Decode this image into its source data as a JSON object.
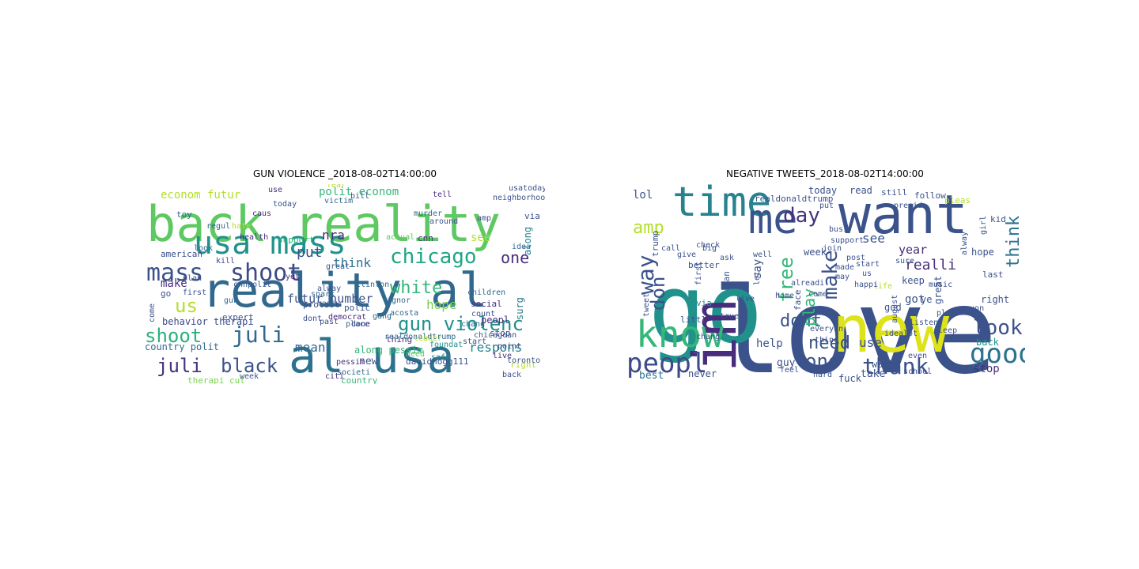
{
  "figure": {
    "panels": [
      {
        "title": "GUN VIOLENCE _2018-08-02T14:00:00",
        "words": [
          {
            "text": "back reality",
            "color": "#5ec962"
          },
          {
            "text": "reality al",
            "color": "#31688e"
          },
          {
            "text": "al usa",
            "color": "#2c728e"
          },
          {
            "text": "usa mass",
            "color": "#21918c"
          },
          {
            "text": "mass",
            "color": "#3b528b"
          },
          {
            "text": "shoot",
            "color": "#3e4a89"
          },
          {
            "text": "chicago",
            "color": "#21a685"
          },
          {
            "text": "juli",
            "color": "#31688e"
          },
          {
            "text": "shoot",
            "color": "#2ab07f"
          },
          {
            "text": "juli",
            "color": "#46327e"
          },
          {
            "text": "black",
            "color": "#3b528b"
          },
          {
            "text": "gun violenc",
            "color": "#21918c"
          },
          {
            "text": "us",
            "color": "#b5de2b"
          },
          {
            "text": "white",
            "color": "#35b779"
          },
          {
            "text": "one",
            "color": "#472d7b"
          },
          {
            "text": "put",
            "color": "#3b528b"
          },
          {
            "text": "nra",
            "color": "#482878"
          },
          {
            "text": "think",
            "color": "#2c728e"
          },
          {
            "text": "mean",
            "color": "#31688e"
          },
          {
            "text": "hope",
            "color": "#7ad151"
          },
          {
            "text": "respons",
            "color": "#26828e"
          },
          {
            "text": "futur number",
            "color": "#3b528b"
          },
          {
            "text": "econom futur",
            "color": "#b5de2b"
          },
          {
            "text": "polit econom",
            "color": "#35b779"
          },
          {
            "text": "make",
            "color": "#472d7b"
          },
          {
            "text": "see",
            "color": "#b5de2b"
          },
          {
            "text": "along",
            "color": "#26828e"
          },
          {
            "text": "surg",
            "color": "#2a788e"
          },
          {
            "text": "new",
            "color": "#3b528b"
          },
          {
            "text": "along pessim",
            "color": "#35b779"
          },
          {
            "text": "country polit",
            "color": "#31688e"
          },
          {
            "text": "behavior therapi",
            "color": "#3e4a89"
          },
          {
            "text": "american",
            "color": "#3b528b"
          },
          {
            "text": "support",
            "color": "#2ab07f"
          },
          {
            "text": "cnn",
            "color": "#472d7b"
          },
          {
            "text": "actual",
            "color": "#5ec962"
          },
          {
            "text": "protest",
            "color": "#3e4a89"
          },
          {
            "text": "go",
            "color": "#3b528b"
          },
          {
            "text": "toy",
            "color": "#31688e"
          },
          {
            "text": "great",
            "color": "#3b528b"
          },
          {
            "text": "thing",
            "color": "#472d7b"
          },
          {
            "text": "realdonaldtrump",
            "color": "#31688e"
          },
          {
            "text": "davidhogg111",
            "color": "#3b528b"
          },
          {
            "text": "pessim",
            "color": "#472d7b"
          },
          {
            "text": "societi",
            "color": "#31688e"
          },
          {
            "text": "country",
            "color": "#35b779"
          },
          {
            "text": "therapi cut",
            "color": "#7ad151"
          },
          {
            "text": "week",
            "color": "#3b528b"
          },
          {
            "text": "peopl",
            "color": "#472d7b"
          },
          {
            "text": "right",
            "color": "#b5de2b"
          },
          {
            "text": "via",
            "color": "#3b528b"
          },
          {
            "text": "children",
            "color": "#31688e"
          },
          {
            "text": "stop",
            "color": "#3e4a89"
          },
          {
            "text": "caus",
            "color": "#472d7b"
          },
          {
            "text": "expert",
            "color": "#3b528b"
          },
          {
            "text": "look",
            "color": "#31688e"
          },
          {
            "text": "social",
            "color": "#472d7b"
          },
          {
            "text": "murder",
            "color": "#31688e"
          },
          {
            "text": "around",
            "color": "#3b528b"
          },
          {
            "text": "democrat",
            "color": "#482878"
          },
          {
            "text": "need",
            "color": "#5ec962"
          },
          {
            "text": "kill",
            "color": "#3e4a89"
          },
          {
            "text": "done",
            "color": "#472d7b"
          },
          {
            "text": "safe",
            "color": "#26828e"
          },
          {
            "text": "count",
            "color": "#3b528b"
          },
          {
            "text": "clinton",
            "color": "#31688e"
          },
          {
            "text": "foundat",
            "color": "#21918c"
          },
          {
            "text": "use",
            "color": "#472d7b"
          },
          {
            "text": "today",
            "color": "#3b528b"
          },
          {
            "text": "acosta",
            "color": "#31688e"
          },
          {
            "text": "chicagoan",
            "color": "#3b528b"
          },
          {
            "text": "victim",
            "color": "#31688e"
          },
          {
            "text": "neighborhood",
            "color": "#3b528b"
          },
          {
            "text": "leader",
            "color": "#b5de2b"
          },
          {
            "text": "tell",
            "color": "#472d7b"
          },
          {
            "text": "usatoday",
            "color": "#3b528b"
          },
          {
            "text": "spark",
            "color": "#31688e"
          },
          {
            "text": "past",
            "color": "#3e4a89"
          },
          {
            "text": "polic",
            "color": "#3b528b"
          },
          {
            "text": "ignor",
            "color": "#31688e"
          },
          {
            "text": "chang",
            "color": "#2c728e"
          },
          {
            "text": "come",
            "color": "#3b528b"
          },
          {
            "text": "fear",
            "color": "#b5de2b"
          },
          {
            "text": "amp",
            "color": "#3b528b"
          },
          {
            "text": "live",
            "color": "#472d7b"
          },
          {
            "text": "back",
            "color": "#3b528b"
          },
          {
            "text": "gun",
            "color": "#31688e"
          },
          {
            "text": "point",
            "color": "#3b528b"
          },
          {
            "text": "citi",
            "color": "#472d7b"
          },
          {
            "text": "gang",
            "color": "#31688e"
          },
          {
            "text": "bill",
            "color": "#3b528b"
          },
          {
            "text": "start",
            "color": "#3b528b"
          },
          {
            "text": "hate",
            "color": "#b5de2b"
          },
          {
            "text": "plan",
            "color": "#3b528b"
          },
          {
            "text": "mani",
            "color": "#31688e"
          },
          {
            "text": "health",
            "color": "#472d7b"
          },
          {
            "text": "toronto",
            "color": "#3b528b"
          },
          {
            "text": "idea",
            "color": "#31688e"
          },
          {
            "text": "first",
            "color": "#3b528b"
          },
          {
            "text": "alway",
            "color": "#3b528b"
          },
          {
            "text": "regul",
            "color": "#31688e"
          },
          {
            "text": "yet",
            "color": "#472d7b"
          },
          {
            "text": "dont",
            "color": "#3b528b"
          },
          {
            "text": "place",
            "color": "#31688e"
          },
          {
            "text": "cnnpolit",
            "color": "#3b528b"
          }
        ]
      },
      {
        "title": "NEGATIVE TWEETS_2018-08-02T14:00:00",
        "words": [
          {
            "text": "love",
            "color": "#3b528b"
          },
          {
            "text": "go",
            "color": "#21918c"
          },
          {
            "text": "want",
            "color": "#3b528b"
          },
          {
            "text": "new",
            "color": "#dde318"
          },
          {
            "text": "im",
            "color": "#472d7b"
          },
          {
            "text": "time",
            "color": "#26828e"
          },
          {
            "text": "me",
            "color": "#3b528b"
          },
          {
            "text": "know",
            "color": "#35b779"
          },
          {
            "text": "good",
            "color": "#2c728e"
          },
          {
            "text": "peopl",
            "color": "#3e4a89"
          },
          {
            "text": "day",
            "color": "#46327e"
          },
          {
            "text": "way",
            "color": "#3b528b"
          },
          {
            "text": "don",
            "color": "#3b528b"
          },
          {
            "text": "thank",
            "color": "#3b528b"
          },
          {
            "text": "think",
            "color": "#2c728e"
          },
          {
            "text": "look",
            "color": "#3b528b"
          },
          {
            "text": "dont",
            "color": "#3b528b"
          },
          {
            "text": "need",
            "color": "#3b528b"
          },
          {
            "text": "one",
            "color": "#3b528b"
          },
          {
            "text": "make",
            "color": "#3b528b"
          },
          {
            "text": "free",
            "color": "#35b779"
          },
          {
            "text": "amp",
            "color": "#b5de2b"
          },
          {
            "text": "lol",
            "color": "#3b528b"
          },
          {
            "text": "see",
            "color": "#3b528b"
          },
          {
            "text": "realli",
            "color": "#472d7b"
          },
          {
            "text": "year",
            "color": "#472d7b"
          },
          {
            "text": "use",
            "color": "#3b528b"
          },
          {
            "text": "help",
            "color": "#3b528b"
          },
          {
            "text": "stop",
            "color": "#472d7b"
          },
          {
            "text": "play",
            "color": "#35b779"
          },
          {
            "text": "got",
            "color": "#3b528b"
          },
          {
            "text": "god",
            "color": "#3b528b"
          },
          {
            "text": "best",
            "color": "#2c728e"
          },
          {
            "text": "take",
            "color": "#3b528b"
          },
          {
            "text": "say",
            "color": "#3b528b"
          },
          {
            "text": "keep",
            "color": "#3b528b"
          },
          {
            "text": "back",
            "color": "#21918c"
          },
          {
            "text": "hope",
            "color": "#3b528b"
          },
          {
            "text": "right",
            "color": "#3b528b"
          },
          {
            "text": "guy",
            "color": "#3b528b"
          },
          {
            "text": "never",
            "color": "#3b528b"
          },
          {
            "text": "work",
            "color": "#3b528b"
          },
          {
            "text": "fuck",
            "color": "#3b528b"
          },
          {
            "text": "week",
            "color": "#3b528b"
          },
          {
            "text": "today",
            "color": "#3b528b"
          },
          {
            "text": "read",
            "color": "#3b528b"
          },
          {
            "text": "still",
            "color": "#3b528b"
          },
          {
            "text": "pleas",
            "color": "#b5de2b"
          },
          {
            "text": "follow",
            "color": "#3b528b"
          },
          {
            "text": "kid",
            "color": "#3b528b"
          },
          {
            "text": "realdonaldtrump",
            "color": "#3b528b"
          },
          {
            "text": "trump",
            "color": "#3b528b"
          },
          {
            "text": "better",
            "color": "#3b528b"
          },
          {
            "text": "ask",
            "color": "#3b528b"
          },
          {
            "text": "check",
            "color": "#3b528b"
          },
          {
            "text": "fan",
            "color": "#3b528b"
          },
          {
            "text": "via",
            "color": "#21918c"
          },
          {
            "text": "face",
            "color": "#3b528b"
          },
          {
            "text": "littl",
            "color": "#3b528b"
          },
          {
            "text": "tweet",
            "color": "#3b528b"
          },
          {
            "text": "come",
            "color": "#3b528b"
          },
          {
            "text": "busi",
            "color": "#3b528b"
          },
          {
            "text": "support",
            "color": "#3b528b"
          },
          {
            "text": "post",
            "color": "#3b528b"
          },
          {
            "text": "made",
            "color": "#3b528b"
          },
          {
            "text": "start",
            "color": "#3b528b"
          },
          {
            "text": "us",
            "color": "#3b528b"
          },
          {
            "text": "home",
            "color": "#3b528b"
          },
          {
            "text": "let",
            "color": "#3b528b"
          },
          {
            "text": "alreadi",
            "color": "#3b528b"
          },
          {
            "text": "live",
            "color": "#3b528b"
          },
          {
            "text": "true",
            "color": "#3b528b"
          },
          {
            "text": "feel",
            "color": "#3b528b"
          },
          {
            "text": "hard",
            "color": "#3b528b"
          },
          {
            "text": "school",
            "color": "#3b528b"
          },
          {
            "text": "even",
            "color": "#3b528b"
          },
          {
            "text": "lot",
            "color": "#3b528b"
          },
          {
            "text": "listen",
            "color": "#3b528b"
          },
          {
            "text": "last",
            "color": "#3b528b"
          },
          {
            "text": "anyon",
            "color": "#3b528b"
          },
          {
            "text": "place",
            "color": "#3b528b"
          },
          {
            "text": "idea",
            "color": "#3b528b"
          },
          {
            "text": "life",
            "color": "#b5de2b"
          },
          {
            "text": "sure",
            "color": "#3b528b"
          },
          {
            "text": "call",
            "color": "#3b528b"
          },
          {
            "text": "give",
            "color": "#3b528b"
          },
          {
            "text": "first",
            "color": "#3b528b"
          },
          {
            "text": "chang",
            "color": "#3b528b"
          },
          {
            "text": "august",
            "color": "#3b528b"
          },
          {
            "text": "music",
            "color": "#3b528b"
          },
          {
            "text": "great",
            "color": "#3b528b"
          },
          {
            "text": "alway",
            "color": "#3b528b"
          },
          {
            "text": "happi",
            "color": "#3b528b"
          },
          {
            "text": "well",
            "color": "#3b528b"
          },
          {
            "text": "big",
            "color": "#3b528b"
          },
          {
            "text": "join",
            "color": "#3b528b"
          },
          {
            "text": "presid",
            "color": "#3b528b"
          },
          {
            "text": "put",
            "color": "#3b528b"
          },
          {
            "text": "thing",
            "color": "#3b528b"
          },
          {
            "text": "amaz",
            "color": "#3b528b"
          },
          {
            "text": "girl",
            "color": "#3b528b"
          },
          {
            "text": "may",
            "color": "#3b528b"
          },
          {
            "text": "everyon",
            "color": "#3b528b"
          },
          {
            "text": "sleep",
            "color": "#3b528b"
          },
          {
            "text": "ye",
            "color": "#3b528b"
          }
        ]
      }
    ]
  }
}
